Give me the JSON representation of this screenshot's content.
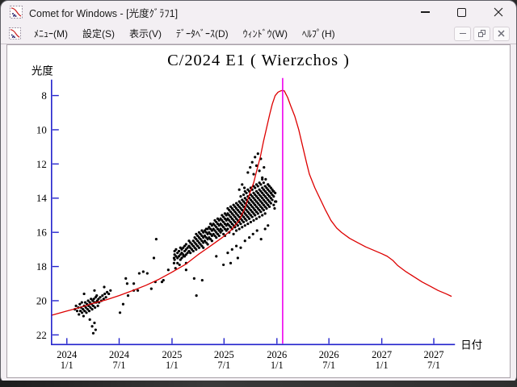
{
  "window": {
    "title": "Comet for Windows - [光度ｸﾞﾗﾌ1]"
  },
  "menubar": {
    "items": [
      {
        "label": "ﾒﾆｭｰ(M)"
      },
      {
        "label": "設定(S)"
      },
      {
        "label": "表示(V)"
      },
      {
        "label": "ﾃﾞｰﾀﾍﾞｰｽ(D)"
      },
      {
        "label": "ｳｨﾝﾄﾞｳ(W)"
      },
      {
        "label": "ﾍﾙﾌﾟ(H)"
      }
    ]
  },
  "chart_data": {
    "type": "scatter",
    "title": "C/2024 E1 ( Wierzchos )",
    "ylabel": "光度",
    "xlabel": "日付",
    "y_axis": {
      "inverted": true,
      "ticks": [
        8,
        10,
        12,
        14,
        16,
        18,
        20,
        22
      ],
      "top_mag": 7.05,
      "bottom_mag": 22.55
    },
    "x_axis": {
      "epoch": "2024-01-01",
      "ticks": [
        {
          "days": 0,
          "year": "2024",
          "md": "1/1"
        },
        {
          "days": 182,
          "year": "2024",
          "md": "7/1"
        },
        {
          "days": 366,
          "year": "2025",
          "md": "1/1"
        },
        {
          "days": 547,
          "year": "2025",
          "md": "7/1"
        },
        {
          "days": 731,
          "year": "2026",
          "md": "1/1"
        },
        {
          "days": 912,
          "year": "2026",
          "md": "7/1"
        },
        {
          "days": 1096,
          "year": "2027",
          "md": "1/1"
        },
        {
          "days": 1277,
          "year": "2027",
          "md": "7/1"
        }
      ]
    },
    "colors": {
      "axis": "#2222cc",
      "curve": "#dd0000",
      "perihelion_line": "#ee00ee",
      "dots": "#000000",
      "text": "#000000"
    },
    "perihelion_line_days": 751,
    "model_curve_points_dm": [
      [
        -53,
        20.85
      ],
      [
        0,
        20.6
      ],
      [
        45,
        20.4
      ],
      [
        92,
        20.15
      ],
      [
        137,
        19.95
      ],
      [
        182,
        19.7
      ],
      [
        230,
        19.4
      ],
      [
        275,
        19.1
      ],
      [
        320,
        18.75
      ],
      [
        364,
        18.35
      ],
      [
        415,
        17.85
      ],
      [
        457,
        17.3
      ],
      [
        500,
        16.8
      ],
      [
        541,
        16.3
      ],
      [
        570,
        15.9
      ],
      [
        600,
        15.3
      ],
      [
        619,
        14.6
      ],
      [
        639,
        13.6
      ],
      [
        650,
        13.1
      ],
      [
        659,
        12.5
      ],
      [
        673,
        11.6
      ],
      [
        684,
        10.7
      ],
      [
        695,
        9.9
      ],
      [
        706,
        9.1
      ],
      [
        715,
        8.5
      ],
      [
        725,
        8.0
      ],
      [
        735,
        7.8
      ],
      [
        745,
        7.72
      ],
      [
        751,
        7.7
      ],
      [
        757,
        7.73
      ],
      [
        762,
        7.9
      ],
      [
        768,
        8.1
      ],
      [
        779,
        8.6
      ],
      [
        793,
        9.2
      ],
      [
        807,
        10.0
      ],
      [
        821,
        11.0
      ],
      [
        835,
        12.0
      ],
      [
        844,
        12.6
      ],
      [
        863,
        13.4
      ],
      [
        883,
        14.1
      ],
      [
        900,
        14.7
      ],
      [
        919,
        15.3
      ],
      [
        939,
        15.75
      ],
      [
        956,
        16.0
      ],
      [
        984,
        16.35
      ],
      [
        1012,
        16.6
      ],
      [
        1040,
        16.85
      ],
      [
        1068,
        17.05
      ],
      [
        1096,
        17.25
      ],
      [
        1115,
        17.4
      ],
      [
        1135,
        17.65
      ],
      [
        1152,
        17.95
      ],
      [
        1180,
        18.3
      ],
      [
        1208,
        18.6
      ],
      [
        1236,
        18.9
      ],
      [
        1264,
        19.15
      ],
      [
        1292,
        19.4
      ],
      [
        1320,
        19.6
      ],
      [
        1339,
        19.75
      ]
    ],
    "observations_points_dm": [
      [
        28,
        20.5
      ],
      [
        32,
        20.3
      ],
      [
        36,
        20.6
      ],
      [
        40,
        20.4
      ],
      [
        42,
        20.8
      ],
      [
        45,
        20.2
      ],
      [
        47,
        20.6
      ],
      [
        50,
        20.4
      ],
      [
        52,
        20.1
      ],
      [
        53,
        20.7
      ],
      [
        56,
        20.5
      ],
      [
        58,
        20.9
      ],
      [
        60,
        20.3
      ],
      [
        60,
        19.6
      ],
      [
        62,
        20.6
      ],
      [
        64,
        20.1
      ],
      [
        66,
        20.4
      ],
      [
        68,
        20.7
      ],
      [
        70,
        20.2
      ],
      [
        72,
        20.5
      ],
      [
        74,
        20.0
      ],
      [
        76,
        20.3
      ],
      [
        78,
        20.6
      ],
      [
        80,
        20.1
      ],
      [
        80,
        21.1
      ],
      [
        82,
        20.4
      ],
      [
        84,
        19.9
      ],
      [
        86,
        20.2
      ],
      [
        88,
        20.5
      ],
      [
        88,
        21.5
      ],
      [
        90,
        20.0
      ],
      [
        92,
        20.3
      ],
      [
        92,
        21.9
      ],
      [
        94,
        19.9
      ],
      [
        96,
        20.1
      ],
      [
        96,
        21.3
      ],
      [
        96,
        19.4
      ],
      [
        98,
        20.4
      ],
      [
        100,
        19.8
      ],
      [
        100,
        21.7
      ],
      [
        102,
        20.1
      ],
      [
        104,
        19.7
      ],
      [
        106,
        20.0
      ],
      [
        108,
        20.3
      ],
      [
        110,
        19.9
      ],
      [
        112,
        20.1
      ],
      [
        116,
        19.8
      ],
      [
        120,
        20.0
      ],
      [
        124,
        19.7
      ],
      [
        128,
        19.9
      ],
      [
        130,
        19.2
      ],
      [
        132,
        19.6
      ],
      [
        136,
        19.8
      ],
      [
        140,
        19.5
      ],
      [
        146,
        19.6
      ],
      [
        152,
        19.4
      ],
      [
        185,
        20.7
      ],
      [
        196,
        20.2
      ],
      [
        205,
        18.7
      ],
      [
        210,
        19.0
      ],
      [
        213,
        19.7
      ],
      [
        233,
        19.4
      ],
      [
        233,
        19.0
      ],
      [
        247,
        19.4
      ],
      [
        252,
        18.4
      ],
      [
        266,
        18.3
      ],
      [
        280,
        18.4
      ],
      [
        294,
        19.3
      ],
      [
        303,
        17.5
      ],
      [
        308,
        18.9
      ],
      [
        311,
        16.4
      ],
      [
        331,
        18.9
      ],
      [
        336,
        18.8
      ],
      [
        353,
        18.2
      ],
      [
        373,
        17.5
      ],
      [
        373,
        17.8
      ],
      [
        378,
        18.1
      ],
      [
        392,
        17.9
      ],
      [
        406,
        17.4
      ],
      [
        415,
        17.8
      ],
      [
        415,
        18.2
      ],
      [
        443,
        18.7
      ],
      [
        451,
        19.7
      ],
      [
        471,
        18.8
      ],
      [
        600,
        13.5
      ],
      [
        610,
        13.2
      ],
      [
        618,
        13.4
      ],
      [
        630,
        12.5
      ],
      [
        638,
        12.2
      ],
      [
        645,
        11.9
      ],
      [
        650,
        12.6
      ],
      [
        655,
        11.6
      ],
      [
        660,
        12.1
      ],
      [
        665,
        11.4
      ],
      [
        670,
        12.4
      ],
      [
        675,
        11.7
      ],
      [
        680,
        12.8
      ],
      [
        686,
        12.2
      ],
      [
        692,
        12.9
      ],
      [
        700,
        13.2
      ],
      [
        520,
        17.4
      ],
      [
        545,
        17.9
      ],
      [
        560,
        17.2
      ],
      [
        570,
        17.8
      ],
      [
        575,
        17.0
      ],
      [
        590,
        16.8
      ],
      [
        595,
        17.5
      ],
      [
        605,
        16.9
      ],
      [
        620,
        16.5
      ],
      [
        635,
        16.3
      ],
      [
        648,
        16.1
      ],
      [
        662,
        15.9
      ],
      [
        676,
        16.4
      ],
      [
        690,
        15.8
      ],
      [
        700,
        15.6
      ],
      [
        718,
        13.6
      ],
      [
        723,
        14.6
      ],
      [
        728,
        14.2
      ]
    ],
    "observations_columns": [
      [
        375,
        17.3,
        17.6,
        17.1
      ],
      [
        380,
        17.4,
        17.0
      ],
      [
        385,
        17.5,
        17.2,
        17.8
      ],
      [
        390,
        17.1,
        17.4
      ],
      [
        395,
        17.3,
        16.9,
        17.6
      ],
      [
        400,
        17.2,
        17.0,
        17.5
      ],
      [
        405,
        16.9,
        17.3
      ],
      [
        410,
        17.1,
        16.8,
        17.4
      ],
      [
        415,
        17.0,
        17.3,
        16.7
      ],
      [
        420,
        16.9,
        17.2
      ],
      [
        425,
        16.8,
        17.1,
        16.5
      ],
      [
        430,
        16.9,
        16.6,
        17.2
      ],
      [
        435,
        16.7,
        17.0
      ],
      [
        440,
        16.8,
        16.5,
        17.1
      ],
      [
        445,
        16.6,
        16.9,
        16.3
      ],
      [
        450,
        16.7,
        16.4,
        17.0,
        16.1
      ],
      [
        455,
        16.5,
        16.8,
        16.2
      ],
      [
        460,
        16.6,
        16.3,
        16.9,
        16.0
      ],
      [
        465,
        16.4,
        16.7,
        16.1
      ],
      [
        470,
        16.5,
        16.2,
        16.8,
        15.9
      ],
      [
        475,
        16.3,
        16.6,
        16.0,
        16.9
      ],
      [
        480,
        16.2,
        16.5,
        15.9
      ],
      [
        485,
        16.3,
        16.0,
        16.6,
        15.8
      ],
      [
        490,
        16.1,
        16.4,
        15.8,
        16.7
      ],
      [
        495,
        16.0,
        16.3,
        15.7
      ],
      [
        500,
        16.1,
        15.8,
        16.4,
        15.5
      ],
      [
        505,
        15.9,
        16.2,
        15.6,
        16.5
      ],
      [
        510,
        15.8,
        16.1,
        15.5
      ],
      [
        515,
        15.9,
        15.6,
        16.2,
        15.3
      ],
      [
        520,
        15.7,
        16.0,
        15.4,
        16.3
      ],
      [
        525,
        15.8,
        15.5,
        16.1,
        15.2
      ],
      [
        530,
        15.6,
        15.9,
        15.3,
        16.2
      ],
      [
        535,
        15.5,
        15.8,
        15.2,
        16.0
      ],
      [
        540,
        15.6,
        15.3,
        15.9,
        15.0
      ],
      [
        545,
        15.4,
        15.7,
        15.1,
        16.1
      ],
      [
        550,
        15.5,
        15.2,
        15.8,
        14.9,
        16.2
      ],
      [
        555,
        15.3,
        15.6,
        15.0,
        15.9
      ],
      [
        560,
        15.2,
        15.5,
        14.9,
        15.8,
        14.6
      ],
      [
        565,
        15.3,
        15.0,
        15.6,
        14.7,
        16.0
      ],
      [
        570,
        15.1,
        15.4,
        14.8,
        15.7,
        14.5
      ],
      [
        575,
        15.2,
        14.9,
        15.5,
        14.6,
        15.8
      ],
      [
        580,
        15.0,
        15.3,
        14.7,
        15.6,
        14.4,
        16.1
      ],
      [
        585,
        15.1,
        14.8,
        15.4,
        14.5,
        15.7
      ],
      [
        590,
        14.9,
        15.2,
        14.6,
        15.5,
        14.3,
        15.9
      ],
      [
        595,
        15.0,
        14.7,
        15.3,
        14.4,
        15.6
      ],
      [
        600,
        14.8,
        15.1,
        14.5,
        15.4,
        14.2,
        15.8
      ],
      [
        605,
        14.9,
        14.6,
        15.2,
        14.3,
        15.5,
        13.9
      ],
      [
        610,
        14.7,
        15.0,
        14.4,
        15.3,
        14.1,
        15.7
      ],
      [
        615,
        14.8,
        14.5,
        15.1,
        14.2,
        15.4,
        13.8
      ],
      [
        620,
        14.6,
        14.9,
        14.3,
        15.2,
        14.0,
        15.6,
        13.6
      ],
      [
        625,
        14.7,
        14.4,
        15.0,
        14.1,
        15.3,
        13.7
      ],
      [
        630,
        14.5,
        14.8,
        14.2,
        15.1,
        13.9,
        15.5,
        13.5
      ],
      [
        635,
        14.6,
        14.3,
        14.9,
        14.0,
        15.2,
        13.6
      ],
      [
        640,
        14.4,
        14.7,
        14.1,
        15.0,
        13.8,
        15.4,
        13.4
      ],
      [
        645,
        14.5,
        14.2,
        14.8,
        13.9,
        15.1,
        13.5
      ],
      [
        650,
        14.3,
        14.6,
        14.0,
        14.9,
        13.7,
        15.3,
        13.3
      ],
      [
        655,
        14.4,
        14.1,
        14.7,
        13.8,
        15.0,
        13.4
      ],
      [
        660,
        14.2,
        14.5,
        13.9,
        14.8,
        13.6,
        15.2,
        13.2
      ],
      [
        665,
        14.3,
        14.0,
        14.6,
        13.7,
        14.9,
        13.3
      ],
      [
        670,
        14.1,
        14.4,
        13.8,
        14.7,
        13.5,
        15.1,
        13.1
      ],
      [
        675,
        14.2,
        13.9,
        14.5,
        13.6,
        14.8,
        13.2
      ],
      [
        680,
        14.0,
        14.3,
        13.7,
        14.6,
        13.4,
        15.0,
        12.9
      ],
      [
        685,
        14.1,
        13.8,
        14.4,
        13.5,
        14.7,
        13.1
      ],
      [
        690,
        13.9,
        14.2,
        13.6,
        14.5,
        13.3,
        14.9
      ],
      [
        695,
        14.0,
        13.7,
        14.3,
        13.4,
        14.6
      ],
      [
        700,
        13.8,
        14.1,
        13.5,
        14.4,
        13.2
      ],
      [
        705,
        13.9,
        13.6,
        14.2,
        13.3,
        14.5
      ],
      [
        710,
        13.7,
        14.0,
        13.4,
        14.3
      ],
      [
        715,
        13.8,
        13.5,
        14.1
      ],
      [
        720,
        13.6,
        13.9,
        14.4
      ],
      [
        725,
        13.7,
        14.2
      ]
    ]
  }
}
